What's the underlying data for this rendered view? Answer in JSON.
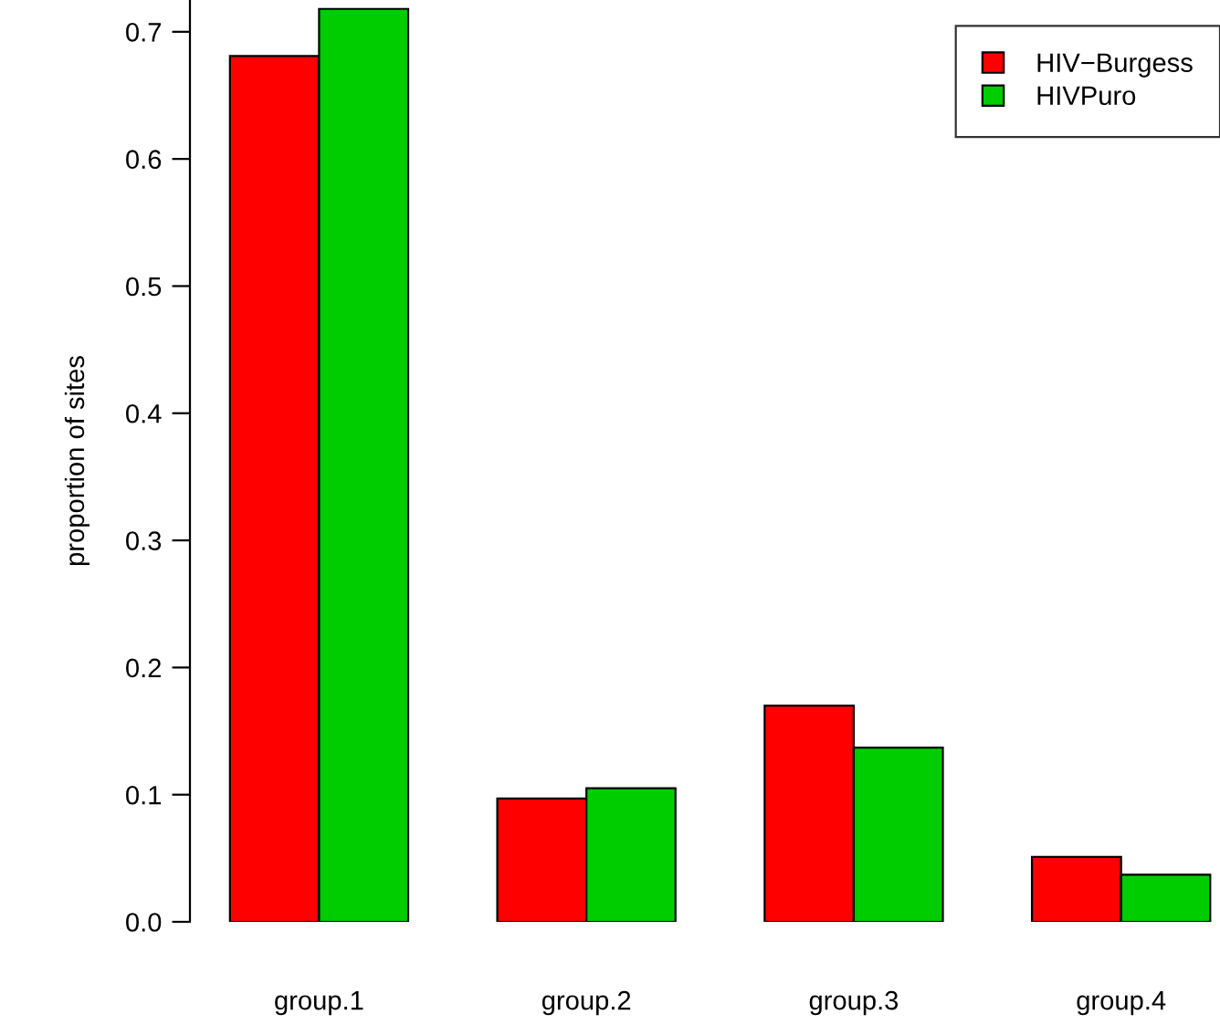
{
  "chart_data": {
    "type": "bar",
    "ylabel": "proportion of sites",
    "categories": [
      "group.1",
      "group.2",
      "group.3",
      "group.4"
    ],
    "series": [
      {
        "name": "HIV−Burgess",
        "color": "#ff0000",
        "values": [
          0.681,
          0.097,
          0.17,
          0.051
        ]
      },
      {
        "name": "HIVPuro",
        "color": "#00cd00",
        "values": [
          0.718,
          0.105,
          0.137,
          0.037
        ]
      }
    ],
    "ylim": [
      0,
      0.725
    ],
    "yticks": [
      {
        "value": 0,
        "label": "0.0"
      },
      0.1,
      0.2,
      0.3,
      0.4,
      0.5,
      0.6,
      0.7
    ],
    "grid": false,
    "legend": "top right"
  }
}
